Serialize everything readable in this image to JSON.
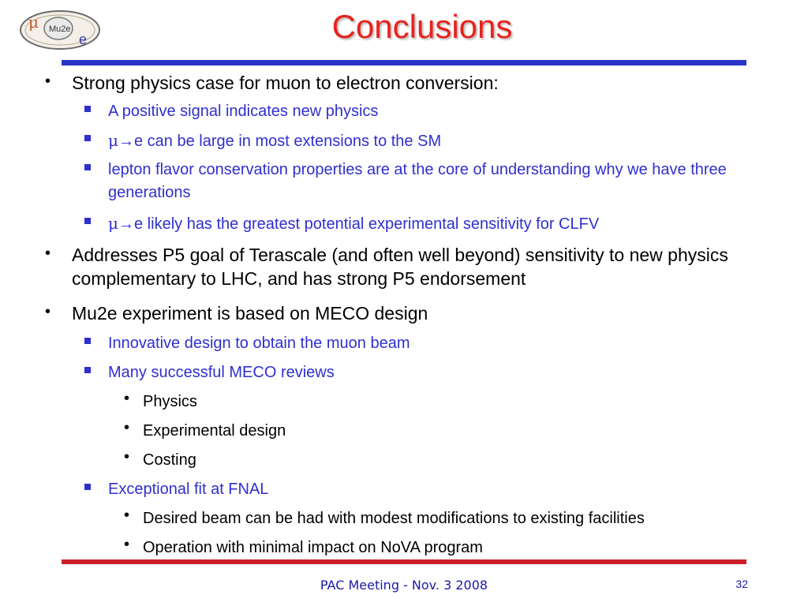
{
  "logo": {
    "mu": "μ",
    "label": "Mu2e",
    "e": "e",
    "color": "#c45a28"
  },
  "title": "Conclusions",
  "items": {
    "b1": "Strong physics case for muon to electron conversion:",
    "b1_1": "A positive signal indicates new physics",
    "b1_2_mu": "μ",
    "b1_2_arrow": "→",
    "b1_2": "e can be large in most extensions to the SM",
    "b1_3": "lepton flavor conservation properties are at the core of understanding why we have three generations",
    "b1_4_mu": "μ",
    "b1_4_arrow": "→",
    "b1_4": "e likely has the greatest potential experimental sensitivity for CLFV",
    "b2": "Addresses P5 goal of Terascale (and often well beyond) sensitivity to new physics complementary to LHC, and has strong P5 endorsement",
    "b3": "Mu2e experiment is based on MECO design",
    "b3_1": "Innovative design to obtain the muon beam",
    "b3_2": "Many successful MECO reviews",
    "b3_2_1": "Physics",
    "b3_2_2": "Experimental design",
    "b3_2_3": "Costing",
    "b3_3": "Exceptional fit at FNAL",
    "b3_3_1": "Desired beam can be had with modest modifications to existing facilities",
    "b3_3_2": "Operation with minimal impact on NoVA program"
  },
  "bullets": {
    "level1": "•",
    "level3": "•"
  },
  "footer": {
    "text": "PAC Meeting - Nov. 3 2008",
    "page": "32"
  },
  "colors": {
    "title": "#e8221e",
    "sub": "#2f2fd0",
    "rule_top": "#2a34c8",
    "rule_bottom": "#cc1f2a"
  }
}
